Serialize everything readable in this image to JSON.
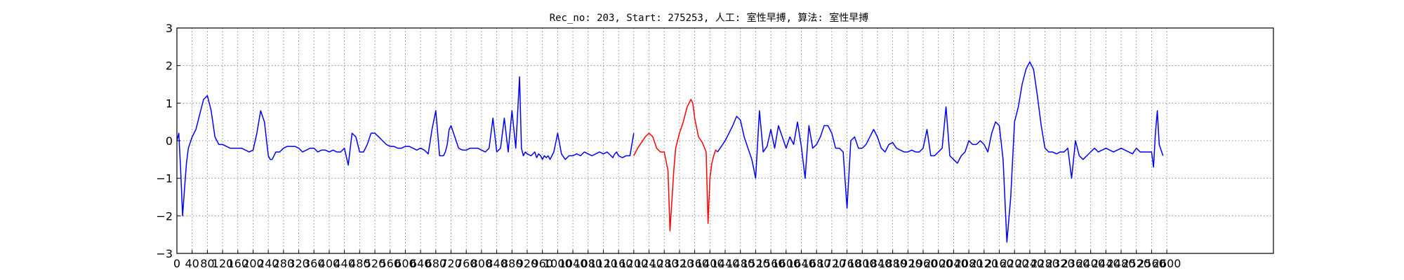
{
  "title": "Rec_no: 203, Start: 275253, 人工: 室性早搏, 算法: 室性早搏",
  "colors": {
    "normal_trace": "#0000ff",
    "highlight_trace": "#ff0000",
    "grid": "#000000",
    "background": "#ffffff"
  },
  "chart_data": {
    "type": "line",
    "title": "Rec_no: 203, Start: 275253, 人工: 室性早搏, 算法: 室性早搏",
    "xlabel": "",
    "ylabel": "",
    "xlim": [
      0,
      2880
    ],
    "ylim": [
      -3,
      3
    ],
    "grid": true,
    "yticks": [
      -3,
      -2,
      -1,
      0,
      1,
      2,
      3
    ],
    "ytick_labels": [
      "−3",
      "−2",
      "−1",
      "0",
      "1",
      "2",
      "3"
    ],
    "xticks": [
      0,
      40,
      80,
      120,
      160,
      200,
      240,
      280,
      320,
      360,
      400,
      440,
      480,
      520,
      560,
      600,
      640,
      680,
      720,
      760,
      800,
      840,
      880,
      920,
      960,
      1000,
      1040,
      1080,
      1120,
      1160,
      1200,
      1240,
      1280,
      1320,
      1360,
      1400,
      1440,
      1480,
      1520,
      1560,
      1600,
      1640,
      1680,
      1720,
      1760,
      1800,
      1840,
      1880,
      1920,
      1960,
      2000,
      2040,
      2080,
      2120,
      2160,
      2200,
      2240,
      2280,
      2320,
      2360,
      2400,
      2440,
      2480,
      2520,
      2560,
      2600
    ],
    "series": [
      {
        "color": "#0000ff",
        "x": [
          0,
          5,
          10,
          15,
          20,
          25,
          30,
          40,
          50,
          60,
          70,
          80,
          90,
          100,
          110,
          120,
          130,
          140,
          150,
          160,
          170,
          180,
          190,
          200,
          210,
          220,
          230,
          240,
          245,
          250,
          255,
          260,
          270,
          280,
          290,
          300,
          310,
          320,
          330,
          340,
          350,
          360,
          370,
          380,
          390,
          400,
          410,
          420,
          430,
          440,
          450,
          460,
          470,
          480,
          490,
          500,
          510,
          520,
          530,
          540,
          550,
          560,
          570,
          580,
          590,
          600,
          610,
          620,
          630,
          640,
          650,
          660,
          670,
          680,
          690,
          700,
          705,
          710,
          715,
          720,
          730,
          740,
          750,
          760,
          770,
          780,
          790,
          800,
          810,
          820,
          830,
          840,
          850,
          860,
          870,
          880,
          890,
          900,
          905,
          910,
          915,
          920,
          930,
          940,
          945,
          950,
          955,
          960,
          965,
          970,
          975,
          980,
          990,
          1000,
          1010,
          1020,
          1030,
          1040,
          1050,
          1060,
          1070,
          1080,
          1090,
          1100,
          1110,
          1120,
          1130,
          1140,
          1145,
          1150,
          1155,
          1160,
          1170,
          1180,
          1190,
          1200
        ],
        "y": [
          0,
          0.2,
          -0.8,
          -2.0,
          -1.3,
          -0.6,
          -0.2,
          0.1,
          0.3,
          0.7,
          1.1,
          1.2,
          0.8,
          0.1,
          -0.1,
          -0.1,
          -0.15,
          -0.2,
          -0.2,
          -0.2,
          -0.2,
          -0.25,
          -0.3,
          -0.25,
          0.2,
          0.8,
          0.5,
          -0.4,
          -0.5,
          -0.5,
          -0.4,
          -0.3,
          -0.3,
          -0.2,
          -0.15,
          -0.15,
          -0.15,
          -0.2,
          -0.3,
          -0.25,
          -0.2,
          -0.2,
          -0.3,
          -0.25,
          -0.25,
          -0.3,
          -0.25,
          -0.3,
          -0.3,
          -0.2,
          -0.65,
          0.2,
          0.1,
          -0.3,
          -0.3,
          -0.1,
          0.2,
          0.2,
          0.1,
          0,
          -0.1,
          -0.15,
          -0.15,
          -0.2,
          -0.2,
          -0.15,
          -0.15,
          -0.2,
          -0.25,
          -0.2,
          -0.25,
          -0.35,
          0.3,
          0.8,
          -0.4,
          -0.4,
          -0.3,
          -0.1,
          0.3,
          0.4,
          0.1,
          -0.2,
          -0.25,
          -0.25,
          -0.2,
          -0.2,
          -0.2,
          -0.25,
          -0.3,
          -0.2,
          0.6,
          -0.3,
          -0.2,
          0.6,
          -0.3,
          0.8,
          -0.2,
          1.7,
          -0.2,
          -0.4,
          -0.3,
          -0.35,
          -0.4,
          -0.3,
          -0.45,
          -0.35,
          -0.4,
          -0.5,
          -0.4,
          -0.45,
          -0.4,
          -0.5,
          -0.3,
          0.2,
          -0.35,
          -0.5,
          -0.4,
          -0.4,
          -0.35,
          -0.4,
          -0.3,
          -0.35,
          -0.4,
          -0.35,
          -0.3,
          -0.35,
          -0.3,
          -0.4,
          -0.45,
          -0.35,
          -0.3,
          -0.4,
          -0.45,
          -0.4,
          -0.4,
          0.2
        ]
      },
      {
        "color": "#ff0000",
        "x": [
          1200,
          1210,
          1220,
          1230,
          1240,
          1250,
          1260,
          1270,
          1280,
          1290,
          1295,
          1300,
          1305,
          1310,
          1320,
          1330,
          1340,
          1350,
          1355,
          1360,
          1370,
          1380,
          1390,
          1395,
          1400,
          1405,
          1410,
          1415,
          1420
        ],
        "y": [
          -0.4,
          -0.2,
          -0.05,
          0.1,
          0.2,
          0.1,
          -0.2,
          -0.3,
          -0.3,
          -0.8,
          -2.4,
          -1.6,
          -0.8,
          -0.2,
          0.2,
          0.5,
          0.9,
          1.1,
          1.0,
          0.6,
          0.1,
          -0.05,
          -0.3,
          -2.2,
          -1.0,
          -0.6,
          -0.4,
          -0.25,
          -0.3
        ]
      },
      {
        "color": "#0000ff",
        "x": [
          1420,
          1430,
          1440,
          1450,
          1460,
          1470,
          1480,
          1490,
          1500,
          1510,
          1520,
          1530,
          1540,
          1550,
          1560,
          1570,
          1580,
          1590,
          1600,
          1610,
          1620,
          1630,
          1640,
          1650,
          1660,
          1670,
          1680,
          1690,
          1700,
          1710,
          1720,
          1730,
          1740,
          1750,
          1760,
          1770,
          1780,
          1790,
          1800,
          1810,
          1820,
          1830,
          1840,
          1850,
          1860,
          1870,
          1880,
          1890,
          1900,
          1910,
          1920,
          1930,
          1940,
          1950,
          1960,
          1970,
          1980,
          1990,
          2000,
          2010,
          2020,
          2030,
          2040,
          2050,
          2060,
          2070,
          2080,
          2090,
          2100,
          2110,
          2120,
          2130,
          2140,
          2150,
          2160,
          2170,
          2180,
          2190,
          2200,
          2210,
          2220,
          2230,
          2240,
          2250,
          2260,
          2270,
          2280,
          2290,
          2300,
          2310,
          2320,
          2330,
          2340,
          2350,
          2360,
          2370,
          2380,
          2390,
          2400,
          2410,
          2420,
          2430,
          2440,
          2450,
          2460,
          2470,
          2480,
          2490,
          2500,
          2510,
          2520,
          2530,
          2540,
          2550,
          2560,
          2565,
          2570,
          2575,
          2580,
          2590
        ],
        "y": [
          -0.3,
          -0.15,
          0,
          0.2,
          0.4,
          0.65,
          0.55,
          0.1,
          -0.2,
          -0.5,
          -1.0,
          0.8,
          -0.3,
          -0.15,
          0.3,
          -0.2,
          0.4,
          0.1,
          -0.2,
          0.1,
          -0.1,
          0.5,
          -0.15,
          -1.0,
          0.4,
          -0.2,
          -0.1,
          0.1,
          0.4,
          0.4,
          0.2,
          -0.2,
          -0.2,
          -0.3,
          -1.8,
          0,
          0.1,
          -0.2,
          -0.2,
          -0.1,
          0.1,
          0.3,
          0.1,
          -0.2,
          -0.3,
          -0.1,
          -0.05,
          -0.2,
          -0.25,
          -0.3,
          -0.3,
          -0.25,
          -0.3,
          -0.3,
          -0.2,
          0.3,
          -0.4,
          -0.4,
          -0.3,
          -0.2,
          0.9,
          -0.4,
          -0.5,
          -0.6,
          -0.4,
          -0.3,
          0,
          -0.1,
          -0.1,
          0,
          -0.1,
          -0.3,
          0.2,
          0.5,
          0.4,
          -0.5,
          -2.7,
          -1.5,
          0.5,
          0.9,
          1.5,
          1.9,
          2.1,
          1.9,
          1.2,
          0.4,
          -0.2,
          -0.3,
          -0.3,
          -0.35,
          -0.3,
          -0.3,
          -0.2,
          -1.0,
          0,
          -0.4,
          -0.5,
          -0.4,
          -0.3,
          -0.2,
          -0.3,
          -0.25,
          -0.2,
          -0.25,
          -0.3,
          -0.25,
          -0.2,
          -0.25,
          -0.3,
          -0.35,
          -0.2,
          -0.3,
          -0.3,
          -0.3,
          -0.3,
          -0.7,
          0.2,
          0.8,
          -0.1,
          -0.4
        ]
      }
    ]
  }
}
